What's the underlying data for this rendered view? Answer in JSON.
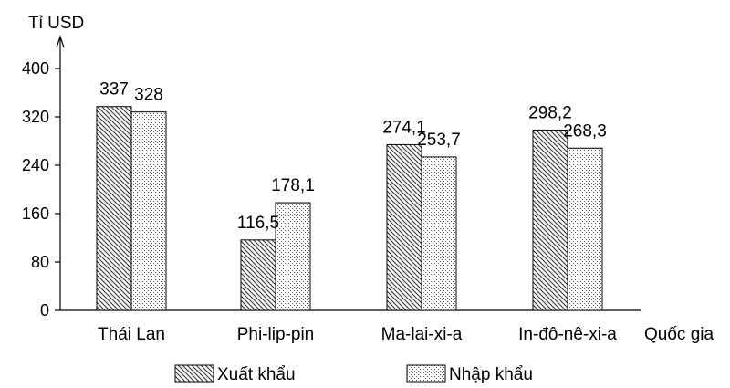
{
  "chart_data": {
    "type": "bar",
    "ylabel": "Tỉ USD",
    "xlabel": "Quốc gia",
    "categories": [
      "Thái Lan",
      "Phi-lip-pin",
      "Ma-lai-xi-a",
      "In-đô-nê-xi-a"
    ],
    "series": [
      {
        "name": "Xuất khẩu",
        "values": [
          337,
          116.5,
          274.1,
          298.2
        ],
        "labels": [
          "337",
          "116,5",
          "274,1",
          "298,2"
        ],
        "pattern": "diagonal-hatch"
      },
      {
        "name": "Nhập khẩu",
        "values": [
          328,
          178.1,
          253.7,
          268.3
        ],
        "labels": [
          "328",
          "178,1",
          "253,7",
          "268,3"
        ],
        "pattern": "dotted"
      }
    ],
    "yticks": [
      0,
      80,
      160,
      240,
      320,
      400
    ],
    "ylim": [
      0,
      400
    ],
    "grid": false,
    "legend": "bottom"
  }
}
